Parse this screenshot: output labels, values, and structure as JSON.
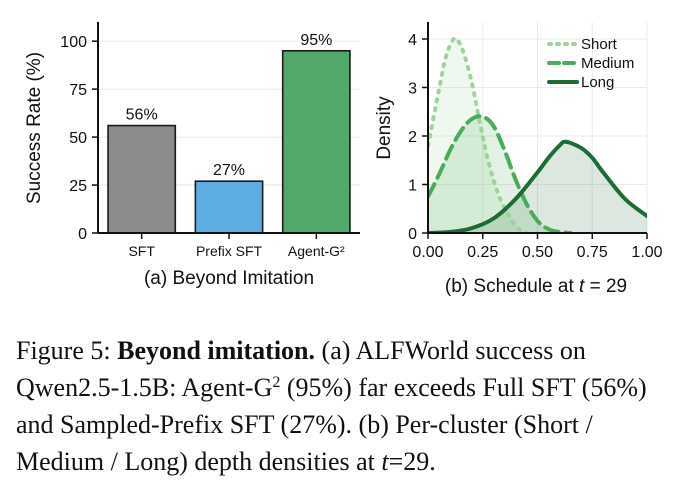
{
  "chart_data": [
    {
      "type": "bar",
      "categories": [
        "SFT",
        "Prefix SFT",
        "Agent-G²"
      ],
      "values": [
        56,
        27,
        95
      ],
      "data_labels": [
        "56%",
        "27%",
        "95%"
      ],
      "colors": [
        "#8c8c8c",
        "#5dade2",
        "#52a86b"
      ],
      "ylabel": "Success Rate (%)",
      "ylim": [
        0,
        110
      ],
      "yticks": [
        0,
        25,
        50,
        75,
        100
      ],
      "grid": "y",
      "subtitle": "(a) Beyond Imitation"
    },
    {
      "type": "line",
      "fill": "area",
      "ylabel": "Density",
      "xlim": [
        0,
        1
      ],
      "ylim": [
        0,
        4.35
      ],
      "xticks": [
        "0.00",
        "0.25",
        "0.50",
        "0.75",
        "1.00"
      ],
      "yticks": [
        0,
        1,
        2,
        3,
        4
      ],
      "grid": "both",
      "legend_position": "top-right",
      "subtitle_pre": "(b) Schedule at ",
      "subtitle_var": "t",
      "subtitle_post": " = 29",
      "series": [
        {
          "name": "Short",
          "color": "#9ed49a",
          "dash": "dotted",
          "x": [
            0.0,
            0.05,
            0.08,
            0.11,
            0.13,
            0.16,
            0.2,
            0.24,
            0.28,
            0.33,
            0.4,
            0.45
          ],
          "y": [
            1.8,
            2.95,
            3.6,
            3.95,
            4.0,
            3.75,
            3.1,
            2.2,
            1.4,
            0.7,
            0.15,
            0.0
          ]
        },
        {
          "name": "Medium",
          "color": "#4aab5a",
          "dash": "dashed",
          "x": [
            0.0,
            0.05,
            0.1,
            0.15,
            0.2,
            0.25,
            0.3,
            0.35,
            0.4,
            0.45,
            0.5,
            0.55,
            0.6,
            0.65
          ],
          "y": [
            0.75,
            1.2,
            1.7,
            2.1,
            2.35,
            2.4,
            2.2,
            1.7,
            1.1,
            0.6,
            0.25,
            0.08,
            0.02,
            0.0
          ]
        },
        {
          "name": "Long",
          "color": "#1e6b35",
          "dash": "solid",
          "x": [
            0.0,
            0.1,
            0.2,
            0.3,
            0.4,
            0.5,
            0.55,
            0.6,
            0.63,
            0.7,
            0.75,
            0.8,
            0.9,
            1.0
          ],
          "y": [
            0.0,
            0.02,
            0.1,
            0.3,
            0.7,
            1.25,
            1.55,
            1.8,
            1.88,
            1.75,
            1.55,
            1.25,
            0.7,
            0.35
          ]
        }
      ]
    }
  ],
  "caption": {
    "prefix": "Figure 5: ",
    "bold": "Beyond imitation.",
    "text1": " (a) ALFWorld success on Qwen2.5-1.5B: Agent-G",
    "sup": "2",
    "text2": " (95%) far exceeds Full SFT (56%) and Sampled-Prefix SFT (27%). (b) Per-cluster (Short / Medium / Long) depth densities at ",
    "var": "t",
    "text3": "=29."
  }
}
